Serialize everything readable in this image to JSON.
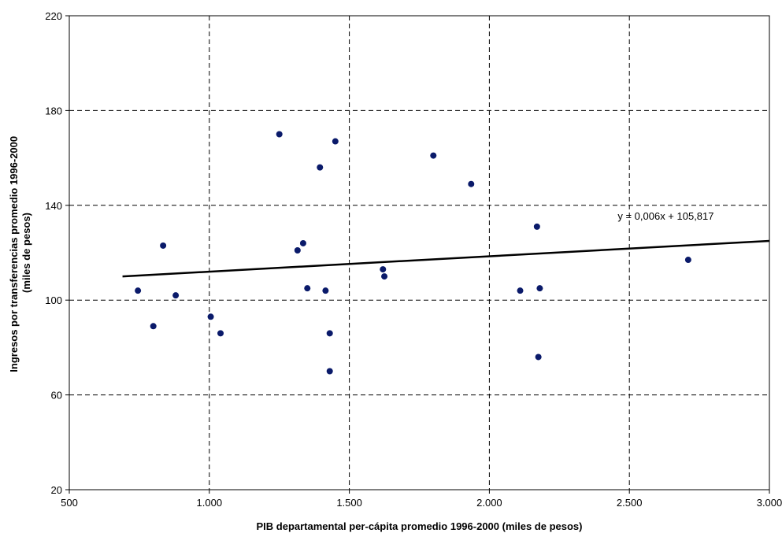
{
  "chart_data": {
    "type": "scatter",
    "xlabel": "PIB departamental per-cápita promedio 1996-2000 (miles de pesos)",
    "ylabel_lines": [
      "Ingresos por transferencias promedio 1996-2000",
      "(miles de pesos)"
    ],
    "xlim": [
      500,
      3000
    ],
    "ylim": [
      20,
      220
    ],
    "x_ticks": [
      500,
      1000,
      1500,
      2000,
      2500,
      3000
    ],
    "x_tick_labels": [
      "500",
      "1.000",
      "1.500",
      "2.000",
      "2.500",
      "3.000"
    ],
    "y_ticks": [
      20,
      60,
      100,
      140,
      180,
      220
    ],
    "y_tick_labels": [
      "20",
      "60",
      "100",
      "140",
      "180",
      "220"
    ],
    "grid": true,
    "grid_style": "dashed",
    "marker_color": "#0a1a6a",
    "points": [
      {
        "x": 745,
        "y": 104
      },
      {
        "x": 800,
        "y": 89
      },
      {
        "x": 835,
        "y": 123
      },
      {
        "x": 880,
        "y": 102
      },
      {
        "x": 1005,
        "y": 93
      },
      {
        "x": 1040,
        "y": 86
      },
      {
        "x": 1250,
        "y": 170
      },
      {
        "x": 1315,
        "y": 121
      },
      {
        "x": 1335,
        "y": 124
      },
      {
        "x": 1350,
        "y": 105
      },
      {
        "x": 1395,
        "y": 156
      },
      {
        "x": 1415,
        "y": 104
      },
      {
        "x": 1430,
        "y": 86
      },
      {
        "x": 1430,
        "y": 70
      },
      {
        "x": 1450,
        "y": 167
      },
      {
        "x": 1620,
        "y": 113
      },
      {
        "x": 1625,
        "y": 110
      },
      {
        "x": 1800,
        "y": 161
      },
      {
        "x": 1935,
        "y": 149
      },
      {
        "x": 2110,
        "y": 104
      },
      {
        "x": 2170,
        "y": 131
      },
      {
        "x": 2175,
        "y": 76
      },
      {
        "x": 2180,
        "y": 105
      },
      {
        "x": 2710,
        "y": 117
      }
    ],
    "trendline": {
      "label": "y = 0,006x + 105,817",
      "x_start": 690,
      "x_end": 3000,
      "y_start": 110,
      "y_end": 125
    }
  }
}
